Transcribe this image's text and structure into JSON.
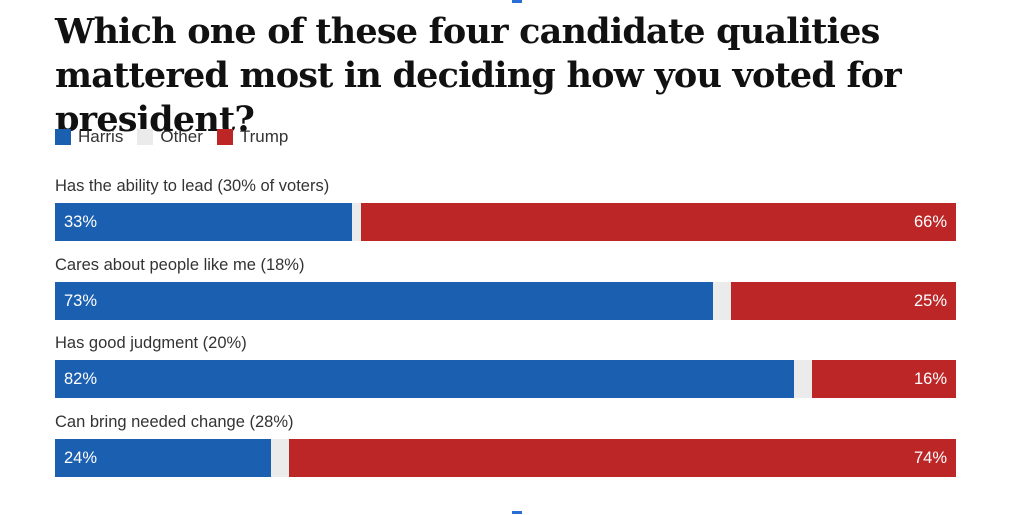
{
  "chart_data": {
    "type": "bar",
    "orientation": "horizontal",
    "stacked": true,
    "title": "Which one of these four candidate qualities mattered most in deciding how you voted for president?",
    "legend": [
      {
        "name": "Harris",
        "color": "#1b5fb0"
      },
      {
        "name": "Other",
        "color": "#ebebeb"
      },
      {
        "name": "Trump",
        "color": "#bd2627"
      }
    ],
    "categories": [
      "Has the ability to lead (30% of voters)",
      "Cares about people like me (18%)",
      "Has good judgment (20%)",
      "Can bring needed change (28%)"
    ],
    "series": [
      {
        "name": "Harris",
        "values": [
          33,
          73,
          82,
          24
        ],
        "labels": [
          "33%",
          "73%",
          "82%",
          "24%"
        ]
      },
      {
        "name": "Trump",
        "values": [
          66,
          25,
          16,
          74
        ],
        "labels": [
          "66%",
          "25%",
          "16%",
          "74%"
        ]
      }
    ],
    "xlim": [
      0,
      100
    ],
    "unit": "%"
  },
  "colors": {
    "harris": "#1b5fb0",
    "other": "#ebebeb",
    "trump": "#bd2627"
  }
}
